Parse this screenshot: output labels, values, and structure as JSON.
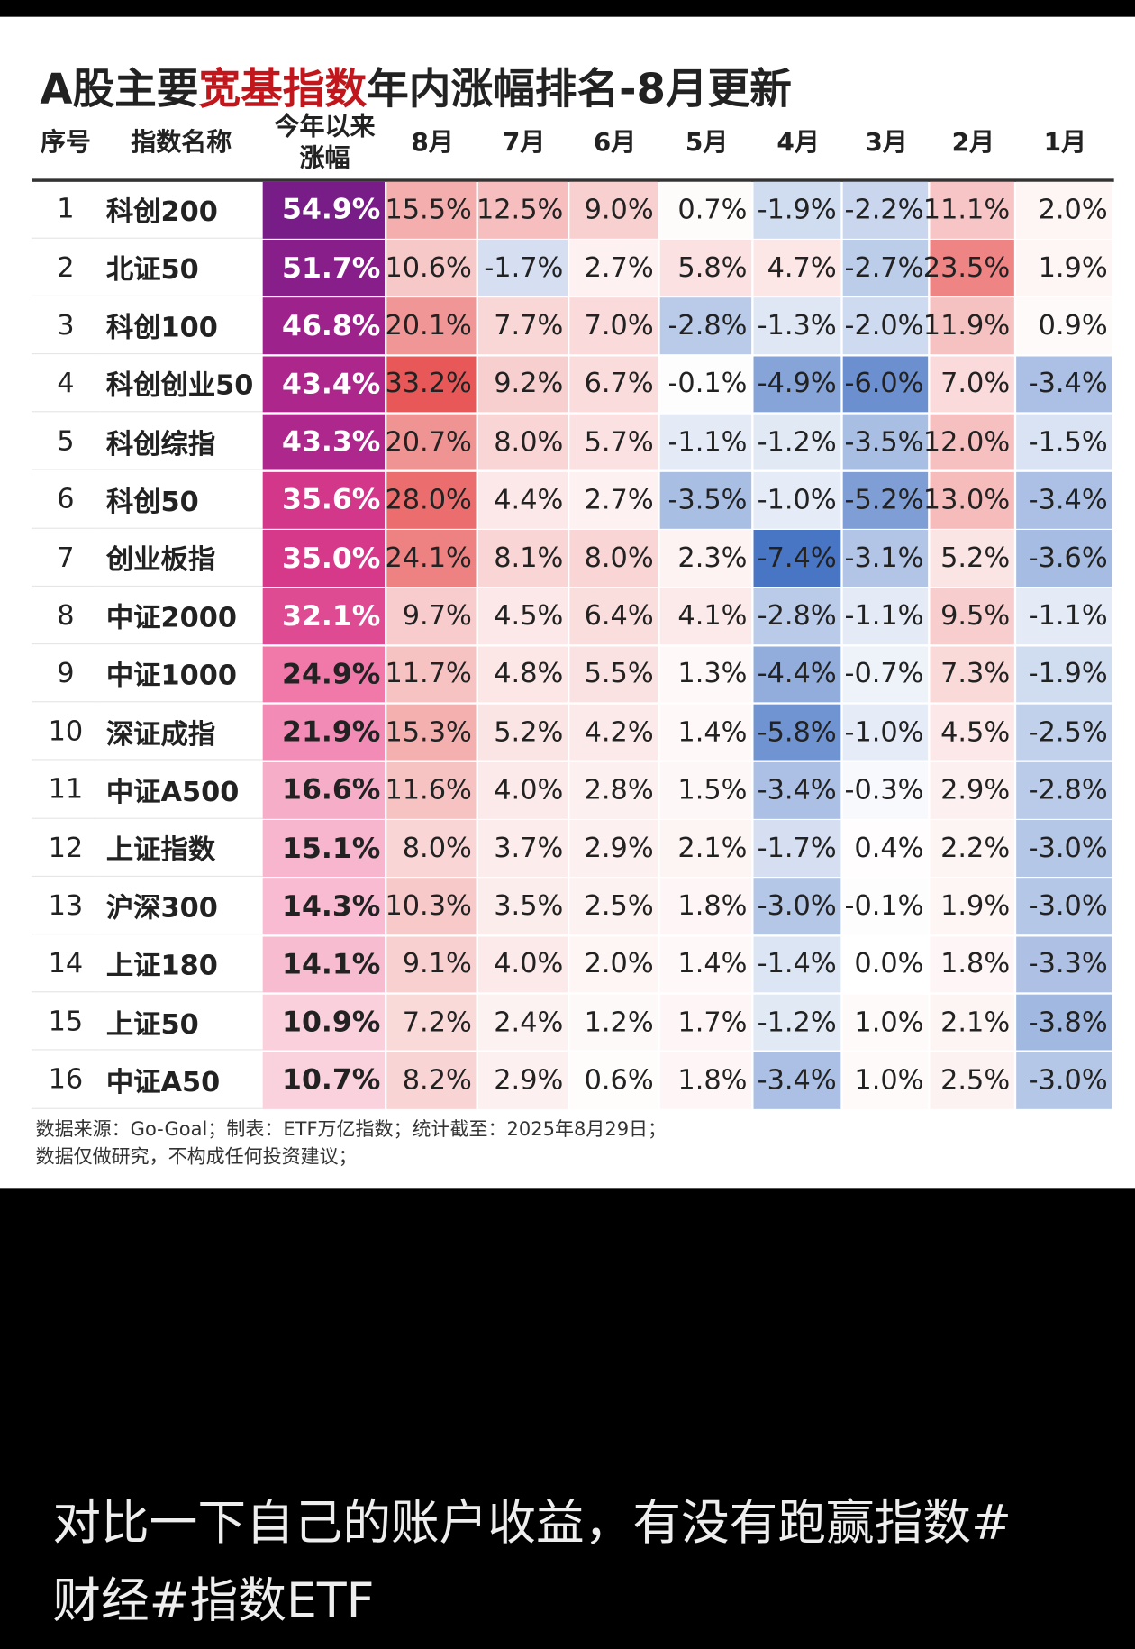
{
  "header": {
    "title": [
      "A股主要",
      "宽基指数",
      "年内涨幅排名-8月更新"
    ]
  },
  "table": {
    "columns": [
      "序号",
      "指数名称",
      [
        "今年以来",
        "涨幅"
      ],
      "8月",
      "7月",
      "6月",
      "5月",
      "4月",
      "3月",
      "2月",
      "1月"
    ],
    "rows": [
      [
        "1",
        "科创200",
        "54.9%",
        "15.5%",
        "12.5%",
        "9.0%",
        "0.7%",
        "-1.9%",
        "-2.2%",
        "11.1%",
        "2.0%"
      ],
      [
        "2",
        "北证50",
        "51.7%",
        "10.6%",
        "-1.7%",
        "2.7%",
        "5.8%",
        "4.7%",
        "-2.7%",
        "23.5%",
        "1.9%"
      ],
      [
        "3",
        "科创100",
        "46.8%",
        "20.1%",
        "7.7%",
        "7.0%",
        "-2.8%",
        "-1.3%",
        "-2.0%",
        "11.9%",
        "0.9%"
      ],
      [
        "4",
        "科创创业50",
        "43.4%",
        "33.2%",
        "9.2%",
        "6.7%",
        "-0.1%",
        "-4.9%",
        "-6.0%",
        "7.0%",
        "-3.4%"
      ],
      [
        "5",
        "科创综指",
        "43.3%",
        "20.7%",
        "8.0%",
        "5.7%",
        "-1.1%",
        "-1.2%",
        "-3.5%",
        "12.0%",
        "-1.5%"
      ],
      [
        "6",
        "科创50",
        "35.6%",
        "28.0%",
        "4.4%",
        "2.7%",
        "-3.5%",
        "-1.0%",
        "-5.2%",
        "13.0%",
        "-3.4%"
      ],
      [
        "7",
        "创业板指",
        "35.0%",
        "24.1%",
        "8.1%",
        "8.0%",
        "2.3%",
        "-7.4%",
        "-3.1%",
        "5.2%",
        "-3.6%"
      ],
      [
        "8",
        "中证2000",
        "32.1%",
        "9.7%",
        "4.5%",
        "6.4%",
        "4.1%",
        "-2.8%",
        "-1.1%",
        "9.5%",
        "-1.1%"
      ],
      [
        "9",
        "中证1000",
        "24.9%",
        "11.7%",
        "4.8%",
        "5.5%",
        "1.3%",
        "-4.4%",
        "-0.7%",
        "7.3%",
        "-1.9%"
      ],
      [
        "10",
        "深证成指",
        "21.9%",
        "15.3%",
        "5.2%",
        "4.2%",
        "1.4%",
        "-5.8%",
        "-1.0%",
        "4.5%",
        "-2.5%"
      ],
      [
        "11",
        "中证A500",
        "16.6%",
        "11.6%",
        "4.0%",
        "2.8%",
        "1.5%",
        "-3.4%",
        "-0.3%",
        "2.9%",
        "-2.8%"
      ],
      [
        "12",
        "上证指数",
        "15.1%",
        "8.0%",
        "3.7%",
        "2.9%",
        "2.1%",
        "-1.7%",
        "0.4%",
        "2.2%",
        "-3.0%"
      ],
      [
        "13",
        "沪深300",
        "14.3%",
        "10.3%",
        "3.5%",
        "2.5%",
        "1.8%",
        "-3.0%",
        "-0.1%",
        "1.9%",
        "-3.0%"
      ],
      [
        "14",
        "上证180",
        "14.1%",
        "9.1%",
        "4.0%",
        "2.0%",
        "1.4%",
        "-1.4%",
        "0.0%",
        "1.8%",
        "-3.3%"
      ],
      [
        "15",
        "上证50",
        "10.9%",
        "7.2%",
        "2.4%",
        "1.2%",
        "1.7%",
        "-1.2%",
        "1.0%",
        "2.1%",
        "-3.8%"
      ],
      [
        "16",
        "中证A50",
        "10.7%",
        "8.2%",
        "2.9%",
        "0.6%",
        "1.8%",
        "-3.4%",
        "1.0%",
        "2.5%",
        "-3.0%"
      ]
    ]
  },
  "footer": [
    "数据来源：Go-Goal；制表：ETF万亿指数；统计截至：2025年8月29日；",
    "数据仅做研究，不构成任何投资建议；"
  ],
  "caption": [
    "对比一下自己的账户收益，有没有跑赢指数#",
    "财经#指数ETF"
  ]
}
